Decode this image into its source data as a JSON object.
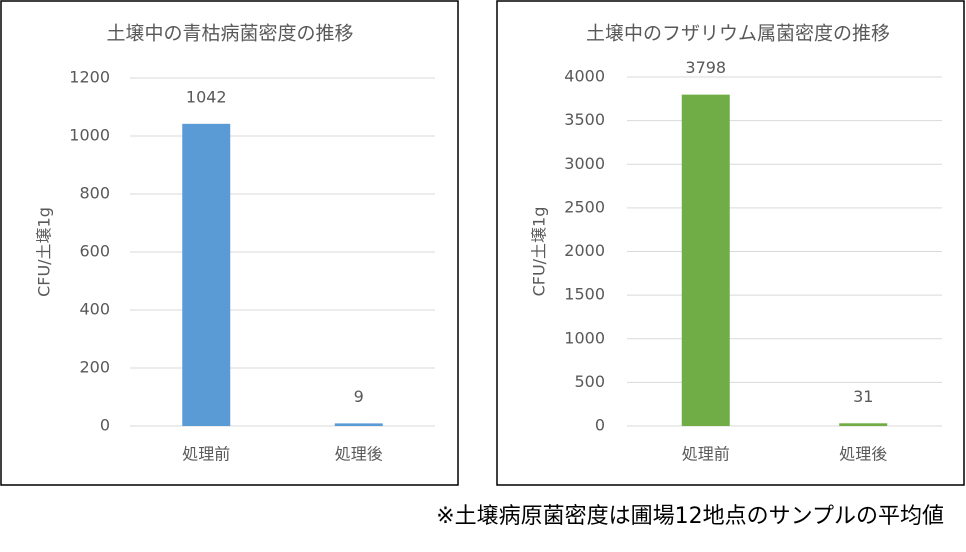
{
  "chart_data": [
    {
      "type": "bar",
      "title": "土壌中の青枯病菌密度の推移",
      "y_label": "CFU/土壌1g",
      "categories": [
        "処理前",
        "処理後"
      ],
      "values": [
        1042,
        9
      ],
      "color": "#5b9bd5",
      "ylim": [
        0,
        1200
      ],
      "yticks": [
        0,
        200,
        400,
        600,
        800,
        1000,
        1200
      ],
      "grid": true
    },
    {
      "type": "bar",
      "title": "土壌中のフザリウム属菌密度の推移",
      "y_label": "CFU/土壌1g",
      "categories": [
        "処理前",
        "処理後"
      ],
      "values": [
        3798,
        31
      ],
      "color": "#70ad47",
      "ylim": [
        0,
        4000
      ],
      "yticks": [
        0,
        500,
        1000,
        1500,
        2000,
        2500,
        3000,
        3500,
        4000
      ],
      "grid": true
    }
  ],
  "footnote": "※土壌病原菌密度は圃場12地点のサンプルの平均値"
}
